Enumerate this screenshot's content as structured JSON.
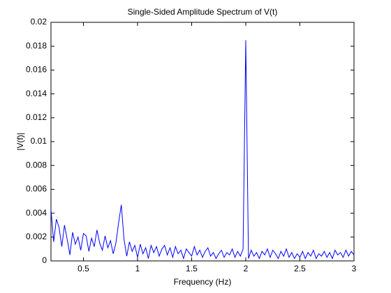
{
  "chart_data": {
    "type": "line",
    "title": "Single-Sided Amplitude Spectrum of V(t)",
    "x_label": "Frequency (Hz)",
    "y_label": "|V(f)|",
    "xlim": [
      0.2,
      3
    ],
    "xticks": [
      0.5,
      1,
      1.5,
      2,
      2.5,
      3
    ],
    "ylim": [
      0,
      0.02
    ],
    "yticks": [
      0,
      0.002,
      0.004,
      0.006,
      0.008,
      0.01,
      0.012,
      0.014,
      0.016,
      0.018,
      0.02
    ],
    "x": [
      0.2,
      0.225,
      0.25,
      0.275,
      0.3,
      0.325,
      0.35,
      0.375,
      0.4,
      0.425,
      0.45,
      0.475,
      0.5,
      0.525,
      0.55,
      0.575,
      0.6,
      0.625,
      0.65,
      0.675,
      0.7,
      0.725,
      0.75,
      0.775,
      0.8,
      0.825,
      0.85,
      0.875,
      0.9,
      0.925,
      0.95,
      0.975,
      1.0,
      1.025,
      1.05,
      1.075,
      1.1,
      1.125,
      1.15,
      1.175,
      1.2,
      1.225,
      1.25,
      1.275,
      1.3,
      1.325,
      1.35,
      1.375,
      1.4,
      1.425,
      1.45,
      1.475,
      1.5,
      1.525,
      1.55,
      1.575,
      1.6,
      1.625,
      1.65,
      1.675,
      1.7,
      1.725,
      1.75,
      1.775,
      1.8,
      1.825,
      1.85,
      1.875,
      1.9,
      1.925,
      1.95,
      1.975,
      2.0,
      2.025,
      2.05,
      2.075,
      2.1,
      2.125,
      2.15,
      2.175,
      2.2,
      2.225,
      2.25,
      2.275,
      2.3,
      2.325,
      2.35,
      2.375,
      2.4,
      2.425,
      2.45,
      2.475,
      2.5,
      2.525,
      2.55,
      2.575,
      2.6,
      2.625,
      2.65,
      2.675,
      2.7,
      2.725,
      2.75,
      2.775,
      2.8,
      2.825,
      2.85,
      2.875,
      2.9,
      2.925,
      2.95,
      2.975,
      3.0
    ],
    "series": [
      {
        "name": "|V(f)|",
        "color": "#0000ff",
        "values": [
          0.0043,
          0.0016,
          0.0035,
          0.0028,
          0.0012,
          0.003,
          0.0018,
          0.0005,
          0.0024,
          0.0014,
          0.002,
          0.0009,
          0.0023,
          0.0021,
          0.0008,
          0.0019,
          0.0012,
          0.0026,
          0.0015,
          0.0009,
          0.0021,
          0.0011,
          0.0017,
          0.0006,
          0.0015,
          0.0032,
          0.0047,
          0.0018,
          0.0004,
          0.0016,
          0.0008,
          0.0013,
          0.0003,
          0.0014,
          0.0006,
          0.0011,
          0.0002,
          0.0013,
          0.0007,
          0.0012,
          0.0004,
          0.001,
          0.0013,
          0.0005,
          0.0011,
          0.0003,
          0.0012,
          0.0006,
          0.0009,
          0.0002,
          0.001,
          0.0007,
          0.0004,
          0.0012,
          0.0005,
          0.0009,
          0.0003,
          0.0008,
          0.0011,
          0.0004,
          0.0007,
          0.0002,
          0.0006,
          0.0009,
          0.0003,
          0.0007,
          0.0005,
          0.001,
          0.0003,
          0.0008,
          0.0004,
          0.001,
          0.0185,
          0.0002,
          0.0009,
          0.0004,
          0.0007,
          0.0002,
          0.0008,
          0.0005,
          0.001,
          0.0003,
          0.0009,
          0.0006,
          0.0002,
          0.0008,
          0.0004,
          0.001,
          0.0003,
          0.0007,
          0.0002,
          0.0006,
          0.0003,
          0.0008,
          0.0002,
          0.0007,
          0.0004,
          0.0009,
          0.0002,
          0.0006,
          0.0004,
          0.0008,
          0.0003,
          0.0007,
          0.0002,
          0.0009,
          0.0005,
          0.0007,
          0.0003,
          0.0009,
          0.0004,
          0.0008,
          0.0005
        ]
      }
    ]
  }
}
